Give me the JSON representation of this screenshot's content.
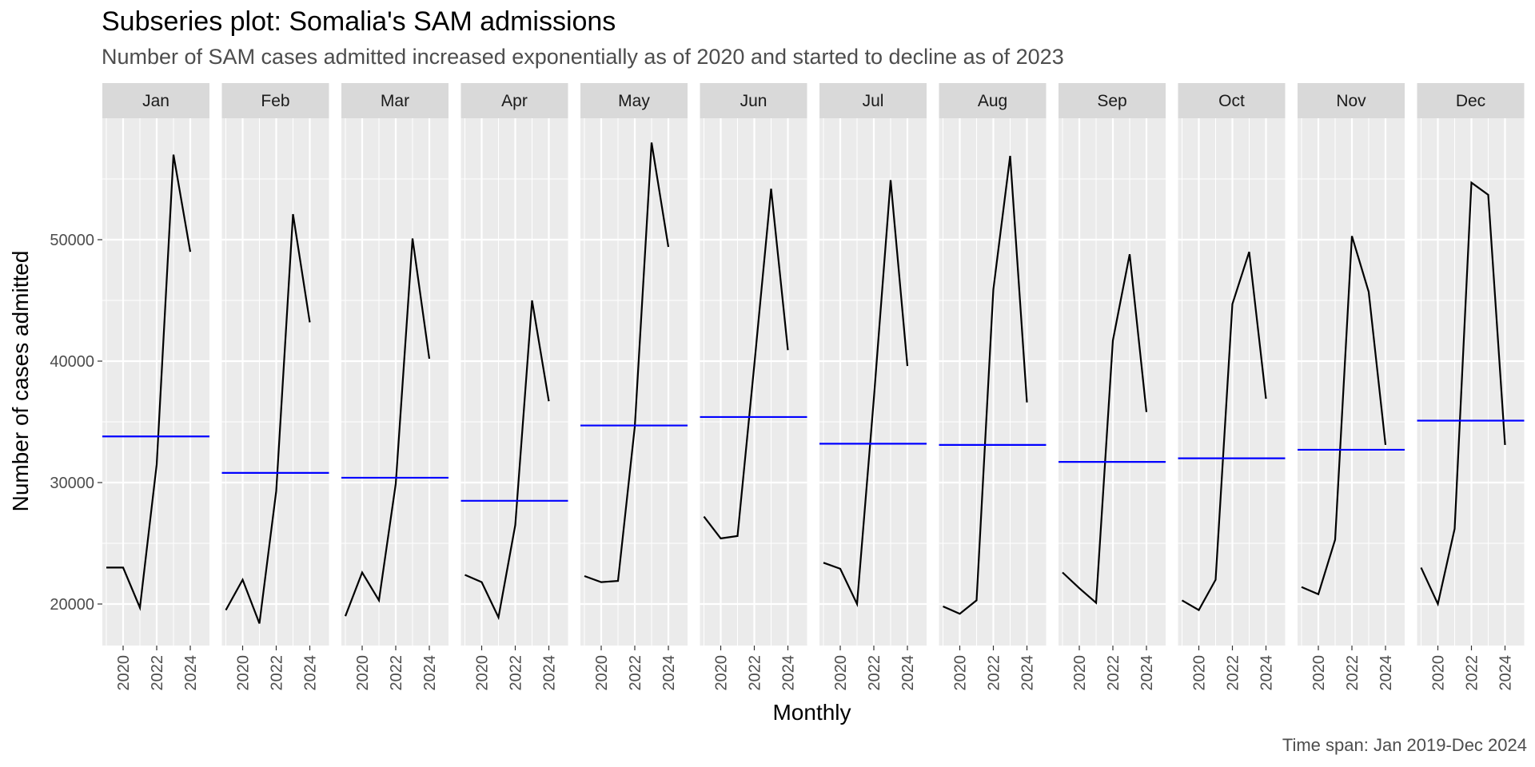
{
  "chart_data": {
    "type": "line",
    "title": "Subseries plot: Somalia's SAM admissions",
    "subtitle": "Number of SAM cases admitted increased exponentially as of 2020 and started to decline as of 2023",
    "caption": "Time span: Jan 2019-Dec 2024",
    "xlabel": "Monthly",
    "ylabel": "Number of cases admitted",
    "x_ticks": [
      2020,
      2022,
      2024
    ],
    "y_ticks": [
      20000,
      30000,
      40000,
      50000
    ],
    "ylim": [
      16500,
      60500
    ],
    "grid": true,
    "mean_line_color": "#0000ff",
    "line_color": "#000000",
    "panels": [
      {
        "label": "Jan",
        "years": [
          2019,
          2020,
          2021,
          2022,
          2023,
          2024
        ],
        "values": [
          23000,
          23000,
          19700,
          31500,
          57000,
          49000
        ],
        "mean": 33800
      },
      {
        "label": "Feb",
        "years": [
          2019,
          2020,
          2021,
          2022,
          2023,
          2024
        ],
        "values": [
          19500,
          22000,
          18400,
          29300,
          52100,
          43200
        ],
        "mean": 30800
      },
      {
        "label": "Mar",
        "years": [
          2019,
          2020,
          2021,
          2022,
          2023,
          2024
        ],
        "values": [
          19000,
          22600,
          20300,
          29900,
          50100,
          40200
        ],
        "mean": 30400
      },
      {
        "label": "Apr",
        "years": [
          2019,
          2020,
          2021,
          2022,
          2023,
          2024
        ],
        "values": [
          22400,
          21800,
          18900,
          26500,
          45000,
          36700
        ],
        "mean": 28500
      },
      {
        "label": "May",
        "years": [
          2019,
          2020,
          2021,
          2022,
          2023,
          2024
        ],
        "values": [
          22300,
          21800,
          21900,
          34600,
          58000,
          49400
        ],
        "mean": 34700
      },
      {
        "label": "Jun",
        "years": [
          2019,
          2020,
          2021,
          2022,
          2023,
          2024
        ],
        "values": [
          27200,
          25400,
          25600,
          39700,
          54200,
          40900
        ],
        "mean": 35400
      },
      {
        "label": "Jul",
        "years": [
          2019,
          2020,
          2021,
          2022,
          2023,
          2024
        ],
        "values": [
          23400,
          22900,
          20000,
          36900,
          54900,
          39600
        ],
        "mean": 33200
      },
      {
        "label": "Aug",
        "years": [
          2019,
          2020,
          2021,
          2022,
          2023,
          2024
        ],
        "values": [
          19800,
          19200,
          20300,
          45900,
          56900,
          36600
        ],
        "mean": 33100
      },
      {
        "label": "Sep",
        "years": [
          2019,
          2020,
          2021,
          2022,
          2023,
          2024
        ],
        "values": [
          22600,
          21300,
          20100,
          41700,
          48800,
          35800
        ],
        "mean": 31700
      },
      {
        "label": "Oct",
        "years": [
          2019,
          2020,
          2021,
          2022,
          2023,
          2024
        ],
        "values": [
          20300,
          19500,
          22000,
          44700,
          49000,
          36900
        ],
        "mean": 32000
      },
      {
        "label": "Nov",
        "years": [
          2019,
          2020,
          2021,
          2022,
          2023,
          2024
        ],
        "values": [
          21400,
          20800,
          25300,
          50300,
          45700,
          33100
        ],
        "mean": 32700
      },
      {
        "label": "Dec",
        "years": [
          2019,
          2020,
          2021,
          2022,
          2023,
          2024
        ],
        "values": [
          23000,
          20000,
          26200,
          54700,
          53700,
          33100
        ],
        "mean": 35100
      }
    ]
  }
}
